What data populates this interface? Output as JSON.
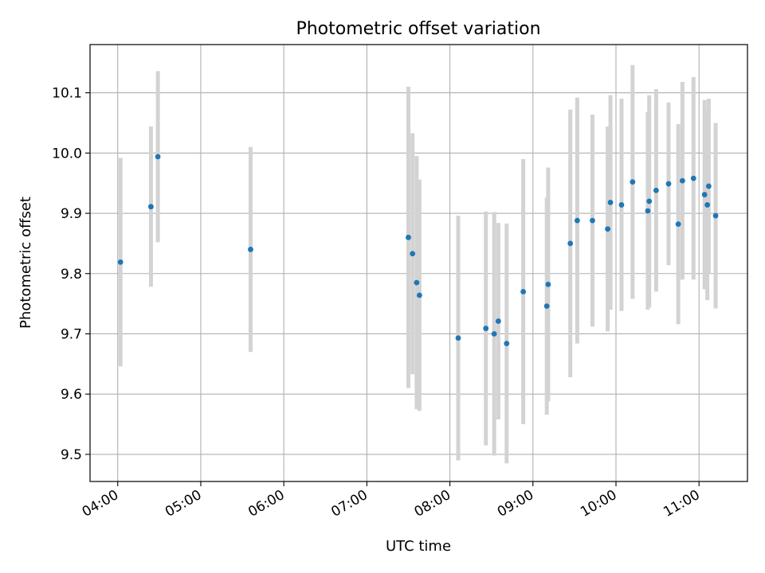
{
  "chart_data": {
    "type": "scatter",
    "title": "Photometric offset variation",
    "xlabel": "UTC time",
    "ylabel": "Photometric offset",
    "x_unit": "UTC time (HH:MM)",
    "xlim": [
      "03:40",
      "11:35"
    ],
    "ylim": [
      9.455,
      10.18
    ],
    "xticks": [
      "04:00",
      "05:00",
      "06:00",
      "07:00",
      "08:00",
      "09:00",
      "10:00",
      "11:00"
    ],
    "yticks": [
      "9.5",
      "9.6",
      "9.7",
      "9.8",
      "9.9",
      "10.0",
      "10.1"
    ],
    "grid": true,
    "marker_color": "#1f77b4",
    "errorbar_color": "#d3d3d3",
    "points": [
      {
        "x": "04:02",
        "y": 9.819,
        "lo": 9.646,
        "hi": 9.992
      },
      {
        "x": "04:24",
        "y": 9.911,
        "lo": 9.778,
        "hi": 10.044
      },
      {
        "x": "04:29",
        "y": 9.994,
        "lo": 9.852,
        "hi": 10.136
      },
      {
        "x": "05:36",
        "y": 9.84,
        "lo": 9.67,
        "hi": 10.01
      },
      {
        "x": "07:30",
        "y": 9.86,
        "lo": 9.61,
        "hi": 10.11
      },
      {
        "x": "07:33",
        "y": 9.833,
        "lo": 9.633,
        "hi": 10.033
      },
      {
        "x": "07:36",
        "y": 9.785,
        "lo": 9.575,
        "hi": 9.995
      },
      {
        "x": "07:38",
        "y": 9.764,
        "lo": 9.572,
        "hi": 9.956
      },
      {
        "x": "08:06",
        "y": 9.693,
        "lo": 9.49,
        "hi": 9.896
      },
      {
        "x": "08:26",
        "y": 9.709,
        "lo": 9.515,
        "hi": 9.903
      },
      {
        "x": "08:32",
        "y": 9.7,
        "lo": 9.498,
        "hi": 9.902
      },
      {
        "x": "08:35",
        "y": 9.721,
        "lo": 9.558,
        "hi": 9.884
      },
      {
        "x": "08:41",
        "y": 9.684,
        "lo": 9.485,
        "hi": 9.883
      },
      {
        "x": "08:53",
        "y": 9.77,
        "lo": 9.55,
        "hi": 9.99
      },
      {
        "x": "09:10",
        "y": 9.746,
        "lo": 9.566,
        "hi": 9.926
      },
      {
        "x": "09:11",
        "y": 9.782,
        "lo": 9.588,
        "hi": 9.976
      },
      {
        "x": "09:27",
        "y": 9.85,
        "lo": 9.628,
        "hi": 10.072
      },
      {
        "x": "09:32",
        "y": 9.888,
        "lo": 9.684,
        "hi": 10.092
      },
      {
        "x": "09:43",
        "y": 9.888,
        "lo": 9.712,
        "hi": 10.064
      },
      {
        "x": "09:54",
        "y": 9.874,
        "lo": 9.704,
        "hi": 10.044
      },
      {
        "x": "09:56",
        "y": 9.918,
        "lo": 9.74,
        "hi": 10.096
      },
      {
        "x": "10:04",
        "y": 9.914,
        "lo": 9.738,
        "hi": 10.09
      },
      {
        "x": "10:12",
        "y": 9.952,
        "lo": 9.758,
        "hi": 10.146
      },
      {
        "x": "10:23",
        "y": 9.904,
        "lo": 9.74,
        "hi": 10.068
      },
      {
        "x": "10:24",
        "y": 9.92,
        "lo": 9.744,
        "hi": 10.096
      },
      {
        "x": "10:29",
        "y": 9.938,
        "lo": 9.77,
        "hi": 10.106
      },
      {
        "x": "10:38",
        "y": 9.949,
        "lo": 9.814,
        "hi": 10.084
      },
      {
        "x": "10:45",
        "y": 9.882,
        "lo": 9.716,
        "hi": 10.048
      },
      {
        "x": "10:48",
        "y": 9.954,
        "lo": 9.79,
        "hi": 10.118
      },
      {
        "x": "10:56",
        "y": 9.958,
        "lo": 9.79,
        "hi": 10.126
      },
      {
        "x": "11:04",
        "y": 9.931,
        "lo": 9.774,
        "hi": 10.088
      },
      {
        "x": "11:06",
        "y": 9.914,
        "lo": 9.756,
        "hi": 10.072
      },
      {
        "x": "11:07",
        "y": 9.945,
        "lo": 9.8,
        "hi": 10.09
      },
      {
        "x": "11:12",
        "y": 9.896,
        "lo": 9.742,
        "hi": 10.05
      }
    ]
  }
}
